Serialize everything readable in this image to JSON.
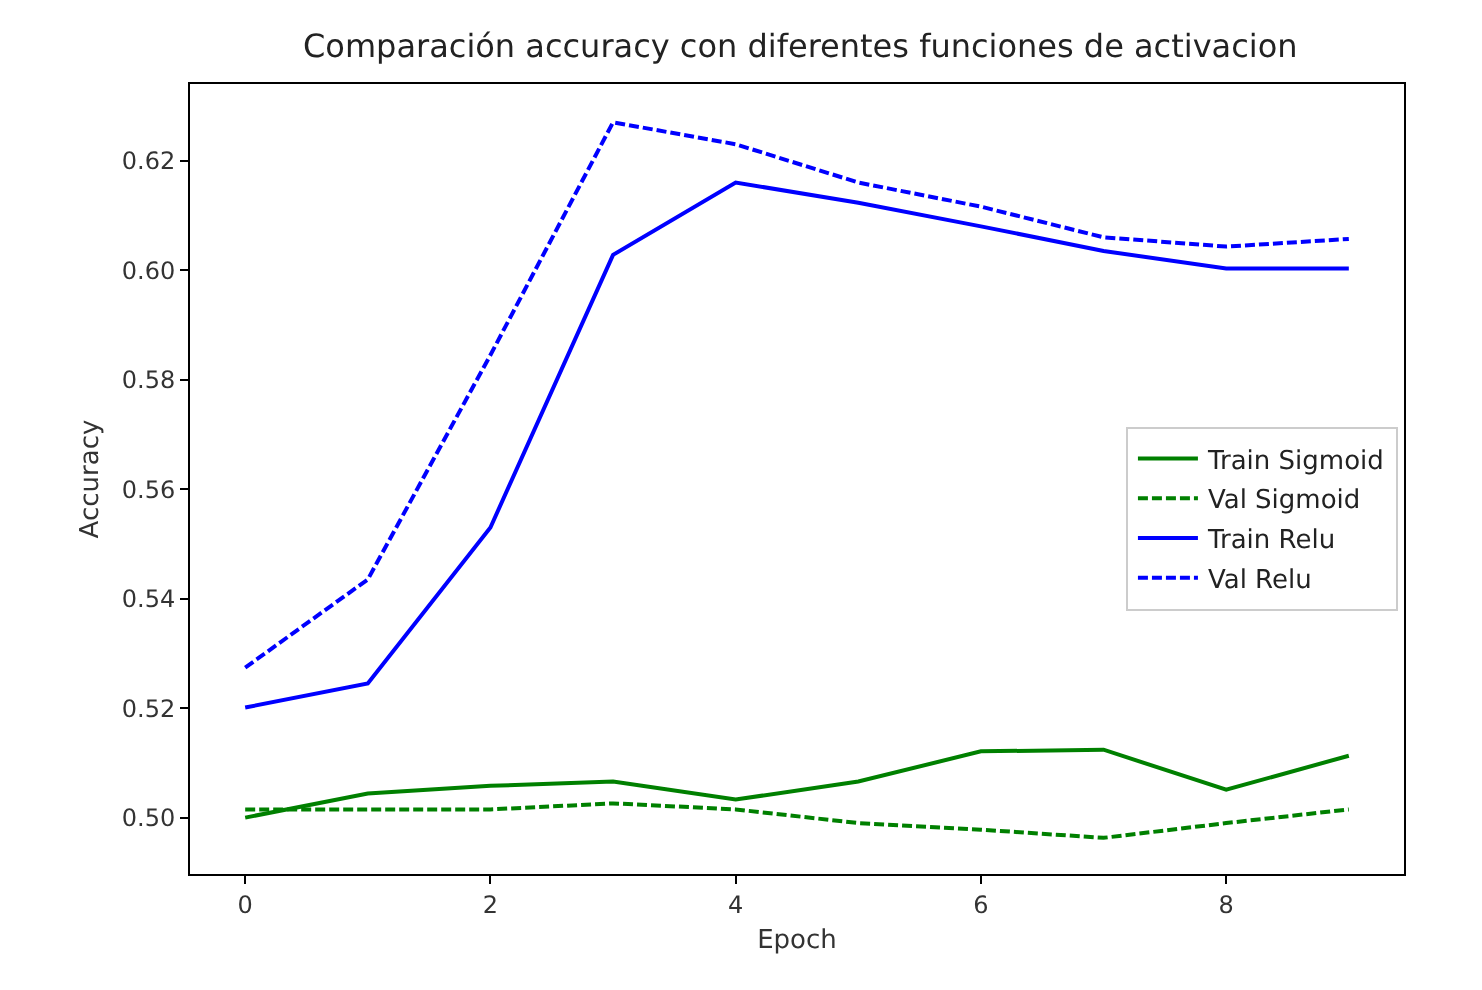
{
  "chart_data": {
    "type": "line",
    "title": "Comparación accuracy con diferentes funciones de activacion",
    "xlabel": "Epoch",
    "ylabel": "Accuracy",
    "x": [
      0,
      1,
      2,
      3,
      4,
      5,
      6,
      7,
      8,
      9
    ],
    "series": [
      {
        "name": "Train Sigmoid",
        "color": "#008000",
        "line_style": "solid",
        "values": [
          0.5,
          0.5044,
          0.5058,
          0.5066,
          0.5033,
          0.5066,
          0.5121,
          0.5124,
          0.5051,
          0.5113
        ]
      },
      {
        "name": "Val Sigmoid",
        "color": "#008000",
        "line_style": "dashed",
        "values": [
          0.5015,
          0.5015,
          0.5015,
          0.5026,
          0.5015,
          0.499,
          0.4978,
          0.4963,
          0.499,
          0.5015
        ]
      },
      {
        "name": "Train Relu",
        "color": "#0000ff",
        "line_style": "solid",
        "values": [
          0.5201,
          0.5245,
          0.553,
          0.6028,
          0.616,
          0.6123,
          0.608,
          0.6035,
          0.6003,
          0.6003
        ]
      },
      {
        "name": "Val Relu",
        "color": "#0000ff",
        "line_style": "dashed",
        "values": [
          0.5274,
          0.5435,
          0.5845,
          0.627,
          0.623,
          0.616,
          0.6116,
          0.606,
          0.6043,
          0.6057
        ]
      }
    ],
    "xlim": [
      -0.45,
      9.45
    ],
    "xticks": [
      0,
      2,
      4,
      6,
      8
    ],
    "ylim": [
      0.4897,
      0.634
    ],
    "yticks": [
      {
        "value": 0.5,
        "label": "0.50"
      },
      {
        "value": 0.52,
        "label": "0.52"
      },
      {
        "value": 0.54,
        "label": "0.54"
      },
      {
        "value": 0.56,
        "label": "0.56"
      },
      {
        "value": 0.58,
        "label": "0.58"
      },
      {
        "value": 0.6,
        "label": "0.60"
      },
      {
        "value": 0.62,
        "label": "0.62"
      }
    ],
    "grid": false,
    "legend": "right",
    "marker": "none"
  }
}
